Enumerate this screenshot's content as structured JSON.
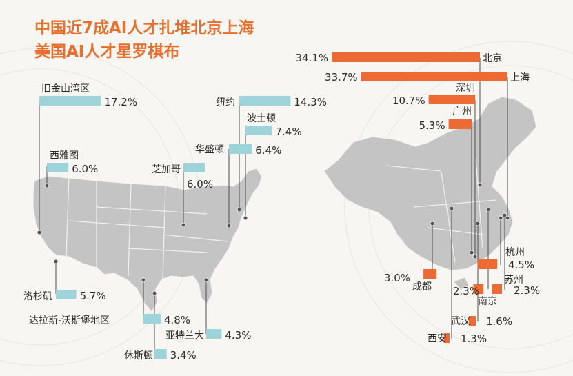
{
  "title_lines": [
    "中国近7成AI人才扎堆北京上海",
    "美国AI人才星罗棋布"
  ],
  "colors": {
    "title": "#e8702e",
    "us_bar": "#9fd3da",
    "cn_bar": "#ec6a33",
    "map": "#c4c4c4"
  },
  "chart_data": [
    {
      "type": "bar",
      "region": "美国",
      "categories": [
        "旧金山湾区",
        "纽约",
        "波士顿",
        "华盛顿",
        "西雅图",
        "芝加哥",
        "洛杉矶",
        "达拉斯-沃斯堡地区",
        "亚特兰大",
        "休斯顿"
      ],
      "values": [
        17.2,
        14.3,
        7.4,
        6.4,
        6.0,
        6.0,
        5.7,
        4.8,
        4.3,
        3.4
      ],
      "labels": [
        "17.2%",
        "14.3%",
        "7.4%",
        "6.4%",
        "6.0%",
        "6.0%",
        "5.7%",
        "4.8%",
        "4.3%",
        "3.4%"
      ],
      "unit": "%"
    },
    {
      "type": "bar",
      "region": "中国",
      "categories": [
        "北京",
        "上海",
        "深圳",
        "广州",
        "杭州",
        "成都",
        "南京",
        "苏州",
        "武汉",
        "西安"
      ],
      "values": [
        34.1,
        33.7,
        10.7,
        5.3,
        4.5,
        3.0,
        2.3,
        2.3,
        1.6,
        1.3
      ],
      "labels": [
        "34.1%",
        "33.7%",
        "10.7%",
        "5.3%",
        "4.5%",
        "3.0%",
        "2.3%",
        "2.3%",
        "1.6%",
        "1.3%"
      ],
      "unit": "%"
    }
  ]
}
